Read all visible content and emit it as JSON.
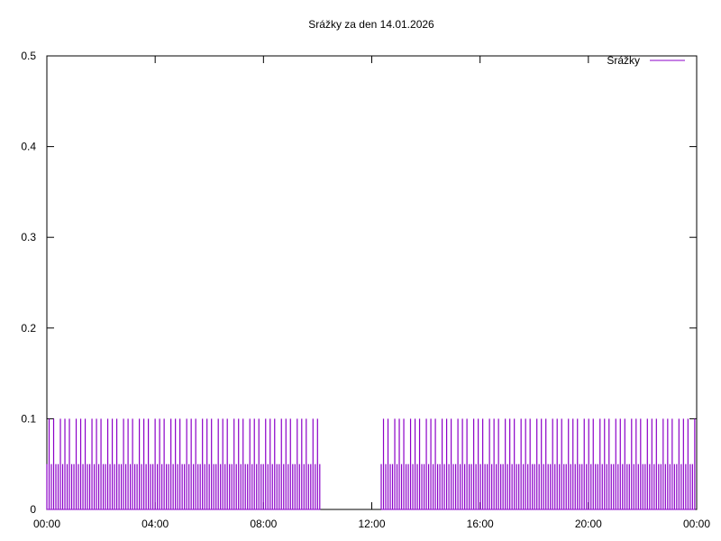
{
  "chart_data": {
    "type": "line",
    "title": "Srážky za den 14.01.2026",
    "xlabel": "",
    "ylabel": "",
    "x_unit": "time of day (hours)",
    "xlim": [
      0,
      24
    ],
    "ylim": [
      0,
      0.5
    ],
    "x_ticks": [
      {
        "value": 0,
        "label": "00:00"
      },
      {
        "value": 4,
        "label": "04:00"
      },
      {
        "value": 8,
        "label": "08:00"
      },
      {
        "value": 12,
        "label": "12:00"
      },
      {
        "value": 16,
        "label": "16:00"
      },
      {
        "value": 20,
        "label": "20:00"
      },
      {
        "value": 24,
        "label": "00:00"
      }
    ],
    "y_ticks": [
      {
        "value": 0,
        "label": "0"
      },
      {
        "value": 0.1,
        "label": "0.1"
      },
      {
        "value": 0.2,
        "label": "0.2"
      },
      {
        "value": 0.3,
        "label": "0.3"
      },
      {
        "value": 0.4,
        "label": "0.4"
      },
      {
        "value": 0.5,
        "label": "0.5"
      }
    ],
    "grid": false,
    "legend": {
      "position": "top-right"
    },
    "series": [
      {
        "name": "Srážky",
        "color": "#8b00c8",
        "values_description": "spikes",
        "segments": [
          {
            "x_start": 0.0,
            "x_end": 10.1,
            "spike_interval_hours": 0.0833,
            "pattern": [
              0.05,
              0.1,
              0.05,
              0.1,
              0.05,
              0.05,
              0.1
            ]
          },
          {
            "x_start": 12.35,
            "x_end": 23.95,
            "spike_interval_hours": 0.0833,
            "pattern": [
              0.05,
              0.1,
              0.05,
              0.1,
              0.05,
              0.05,
              0.1
            ]
          }
        ]
      }
    ]
  }
}
